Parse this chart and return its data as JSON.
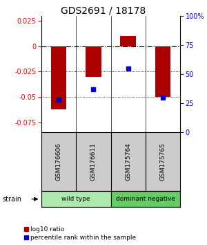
{
  "title": "GDS2691 / 18178",
  "samples": [
    "GSM176606",
    "GSM176611",
    "GSM175764",
    "GSM175765"
  ],
  "log10_ratio": [
    -0.062,
    -0.03,
    0.01,
    -0.05
  ],
  "percentile_rank": [
    28,
    37,
    55,
    30
  ],
  "bar_color": "#AA0000",
  "point_color": "#0000CC",
  "left_ylim": [
    -0.085,
    0.03
  ],
  "right_ylim": [
    0,
    100
  ],
  "left_yticks": [
    0.025,
    0,
    -0.025,
    -0.05,
    -0.075
  ],
  "right_yticks": [
    100,
    75,
    50,
    25,
    0
  ],
  "hline_dots": [
    -0.025,
    -0.05
  ],
  "groups": [
    {
      "label": "wild type",
      "color": "#AEEAAE",
      "samples": [
        0,
        1
      ]
    },
    {
      "label": "dominant negative",
      "color": "#66CC66",
      "samples": [
        2,
        3
      ]
    }
  ],
  "strain_label": "strain",
  "legend_bar_label": "log10 ratio",
  "legend_point_label": "percentile rank within the sample",
  "background_color": "#ffffff",
  "label_bg_color": "#CCCCCC",
  "bar_width": 0.45
}
